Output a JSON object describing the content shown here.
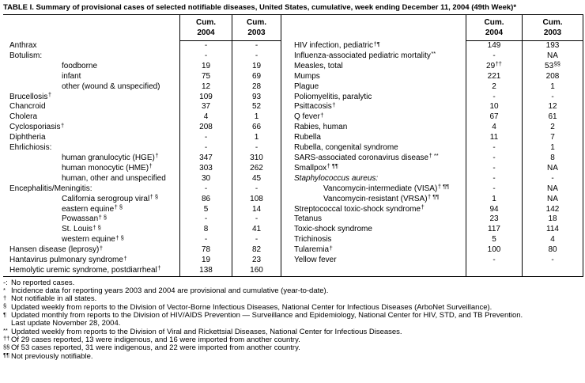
{
  "title": "TABLE I. Summary of provisional cases of selected notifiable diseases, United States, cumulative, week ending December 11, 2004 (49th Week)*",
  "columns": {
    "cum": "Cum.",
    "y2004": "2004",
    "y2003": "2003"
  },
  "left_rows": [
    {
      "label": "Anthrax",
      "sup": "",
      "indent": 0,
      "italic": false,
      "v2004": "-",
      "s2004": "",
      "v2003": "-",
      "s2003": ""
    },
    {
      "label": "Botulism:",
      "sup": "",
      "indent": 0,
      "italic": false,
      "v2004": "-",
      "s2004": "",
      "v2003": "-",
      "s2003": ""
    },
    {
      "label": "foodborne",
      "sup": "",
      "indent": 1,
      "italic": false,
      "v2004": "19",
      "s2004": "",
      "v2003": "19",
      "s2003": ""
    },
    {
      "label": "infant",
      "sup": "",
      "indent": 1,
      "italic": false,
      "v2004": "75",
      "s2004": "",
      "v2003": "69",
      "s2003": ""
    },
    {
      "label": "other (wound & unspecified)",
      "sup": "",
      "indent": 1,
      "italic": false,
      "v2004": "12",
      "s2004": "",
      "v2003": "28",
      "s2003": ""
    },
    {
      "label": "Brucellosis",
      "sup": "†",
      "indent": 0,
      "italic": false,
      "v2004": "109",
      "s2004": "",
      "v2003": "93",
      "s2003": ""
    },
    {
      "label": "Chancroid",
      "sup": "",
      "indent": 0,
      "italic": false,
      "v2004": "37",
      "s2004": "",
      "v2003": "52",
      "s2003": ""
    },
    {
      "label": "Cholera",
      "sup": "",
      "indent": 0,
      "italic": false,
      "v2004": "4",
      "s2004": "",
      "v2003": "1",
      "s2003": ""
    },
    {
      "label": "Cyclosporiasis",
      "sup": "†",
      "indent": 0,
      "italic": false,
      "v2004": "208",
      "s2004": "",
      "v2003": "66",
      "s2003": ""
    },
    {
      "label": "Diphtheria",
      "sup": "",
      "indent": 0,
      "italic": false,
      "v2004": "-",
      "s2004": "",
      "v2003": "1",
      "s2003": ""
    },
    {
      "label": "Ehrlichiosis:",
      "sup": "",
      "indent": 0,
      "italic": false,
      "v2004": "-",
      "s2004": "",
      "v2003": "-",
      "s2003": ""
    },
    {
      "label": "human granulocytic (HGE)",
      "sup": "†",
      "indent": 1,
      "italic": false,
      "v2004": "347",
      "s2004": "",
      "v2003": "310",
      "s2003": ""
    },
    {
      "label": "human monocytic (HME)",
      "sup": "†",
      "indent": 1,
      "italic": false,
      "v2004": "303",
      "s2004": "",
      "v2003": "262",
      "s2003": ""
    },
    {
      "label": "human, other and unspecified",
      "sup": "",
      "indent": 1,
      "italic": false,
      "v2004": "30",
      "s2004": "",
      "v2003": "45",
      "s2003": ""
    },
    {
      "label": "Encephalitis/Meningitis:",
      "sup": "",
      "indent": 0,
      "italic": false,
      "v2004": "-",
      "s2004": "",
      "v2003": "-",
      "s2003": ""
    },
    {
      "label": "California serogroup viral",
      "sup": "† §",
      "indent": 1,
      "italic": false,
      "v2004": "86",
      "s2004": "",
      "v2003": "108",
      "s2003": ""
    },
    {
      "label": "eastern equine",
      "sup": "† §",
      "indent": 1,
      "italic": false,
      "v2004": "5",
      "s2004": "",
      "v2003": "14",
      "s2003": ""
    },
    {
      "label": "Powassan",
      "sup": "† §",
      "indent": 1,
      "italic": false,
      "v2004": "-",
      "s2004": "",
      "v2003": "-",
      "s2003": ""
    },
    {
      "label": "St. Louis",
      "sup": "† §",
      "indent": 1,
      "italic": false,
      "v2004": "8",
      "s2004": "",
      "v2003": "41",
      "s2003": ""
    },
    {
      "label": "western equine",
      "sup": "† §",
      "indent": 1,
      "italic": false,
      "v2004": "-",
      "s2004": "",
      "v2003": "-",
      "s2003": ""
    },
    {
      "label": "Hansen disease (leprosy)",
      "sup": "†",
      "indent": 0,
      "italic": false,
      "v2004": "78",
      "s2004": "",
      "v2003": "82",
      "s2003": ""
    },
    {
      "label": "Hantavirus pulmonary syndrome",
      "sup": "†",
      "indent": 0,
      "italic": false,
      "v2004": "19",
      "s2004": "",
      "v2003": "23",
      "s2003": ""
    },
    {
      "label": "Hemolytic uremic syndrome, postdiarrheal",
      "sup": "†",
      "indent": 0,
      "italic": false,
      "v2004": "138",
      "s2004": "",
      "v2003": "160",
      "s2003": ""
    }
  ],
  "right_rows": [
    {
      "label": "HIV infection, pediatric",
      "sup": "†¶",
      "indent": 0,
      "italic": false,
      "v2004": "149",
      "s2004": "",
      "v2003": "193",
      "s2003": ""
    },
    {
      "label": "Influenza-associated pediatric mortality",
      "sup": "**",
      "indent": 0,
      "italic": false,
      "v2004": "-",
      "s2004": "",
      "v2003": "NA",
      "s2003": ""
    },
    {
      "label": "Measles, total",
      "sup": "",
      "indent": 0,
      "italic": false,
      "v2004": "29",
      "s2004": "††",
      "v2003": "53",
      "s2003": "§§"
    },
    {
      "label": "Mumps",
      "sup": "",
      "indent": 0,
      "italic": false,
      "v2004": "221",
      "s2004": "",
      "v2003": "208",
      "s2003": ""
    },
    {
      "label": "Plague",
      "sup": "",
      "indent": 0,
      "italic": false,
      "v2004": "2",
      "s2004": "",
      "v2003": "1",
      "s2003": ""
    },
    {
      "label": "Poliomyelitis, paralytic",
      "sup": "",
      "indent": 0,
      "italic": false,
      "v2004": "-",
      "s2004": "",
      "v2003": "-",
      "s2003": ""
    },
    {
      "label": "Psittacosis",
      "sup": "†",
      "indent": 0,
      "italic": false,
      "v2004": "10",
      "s2004": "",
      "v2003": "12",
      "s2003": ""
    },
    {
      "label": "Q fever",
      "sup": "†",
      "indent": 0,
      "italic": false,
      "v2004": "67",
      "s2004": "",
      "v2003": "61",
      "s2003": ""
    },
    {
      "label": "Rabies, human",
      "sup": "",
      "indent": 0,
      "italic": false,
      "v2004": "4",
      "s2004": "",
      "v2003": "2",
      "s2003": ""
    },
    {
      "label": "Rubella",
      "sup": "",
      "indent": 0,
      "italic": false,
      "v2004": "11",
      "s2004": "",
      "v2003": "7",
      "s2003": ""
    },
    {
      "label": "Rubella, congenital syndrome",
      "sup": "",
      "indent": 0,
      "italic": false,
      "v2004": "-",
      "s2004": "",
      "v2003": "1",
      "s2003": ""
    },
    {
      "label": "SARS-associated coronavirus disease",
      "sup": "† **",
      "indent": 0,
      "italic": false,
      "v2004": "-",
      "s2004": "",
      "v2003": "8",
      "s2003": ""
    },
    {
      "label": "Smallpox",
      "sup": "† ¶¶",
      "indent": 0,
      "italic": false,
      "v2004": "-",
      "s2004": "",
      "v2003": "NA",
      "s2003": ""
    },
    {
      "label": "Staphylococcus aureus:",
      "sup": "",
      "indent": 0,
      "italic": true,
      "v2004": "-",
      "s2004": "",
      "v2003": "-",
      "s2003": ""
    },
    {
      "label": "Vancomycin-intermediate (VISA)",
      "sup": "† ¶¶",
      "indent": 1,
      "italic": false,
      "v2004": "-",
      "s2004": "",
      "v2003": "NA",
      "s2003": ""
    },
    {
      "label": "Vancomycin-resistant (VRSA)",
      "sup": "† ¶¶",
      "indent": 1,
      "italic": false,
      "v2004": "1",
      "s2004": "",
      "v2003": "NA",
      "s2003": ""
    },
    {
      "label": "Streptococcal toxic-shock syndrome",
      "sup": "†",
      "indent": 0,
      "italic": false,
      "v2004": "94",
      "s2004": "",
      "v2003": "142",
      "s2003": ""
    },
    {
      "label": "Tetanus",
      "sup": "",
      "indent": 0,
      "italic": false,
      "v2004": "23",
      "s2004": "",
      "v2003": "18",
      "s2003": ""
    },
    {
      "label": "Toxic-shock syndrome",
      "sup": "",
      "indent": 0,
      "italic": false,
      "v2004": "117",
      "s2004": "",
      "v2003": "114",
      "s2003": ""
    },
    {
      "label": "Trichinosis",
      "sup": "",
      "indent": 0,
      "italic": false,
      "v2004": "5",
      "s2004": "",
      "v2003": "4",
      "s2003": ""
    },
    {
      "label": "Tularemia",
      "sup": "†",
      "indent": 0,
      "italic": false,
      "v2004": "100",
      "s2004": "",
      "v2003": "80",
      "s2003": ""
    },
    {
      "label": "Yellow fever",
      "sup": "",
      "indent": 0,
      "italic": false,
      "v2004": "-",
      "s2004": "",
      "v2003": "-",
      "s2003": ""
    }
  ],
  "footnotes": [
    {
      "marker": "-:",
      "text": "No reported cases.",
      "cont": ""
    },
    {
      "marker": "*",
      "text": "Incidence data for reporting years 2003 and 2004 are provisional and cumulative (year-to-date).",
      "cont": ""
    },
    {
      "marker": "†",
      "text": "Not notifiable in all states.",
      "cont": ""
    },
    {
      "marker": "§",
      "text": "Updated weekly from reports to the Division of Vector-Borne Infectious Diseases, National Center for Infectious Diseases (ArboNet Surveillance).",
      "cont": ""
    },
    {
      "marker": "¶",
      "text": "Updated monthly from reports to the Division of HIV/AIDS Prevention — Surveillance and Epidemiology, National Center for HIV, STD, and TB Prevention.",
      "cont": "Last update November 28, 2004."
    },
    {
      "marker": "**",
      "text": "Updated weekly from reports to the Division of Viral and Rickettsial Diseases, National Center for Infectious Diseases.",
      "cont": ""
    },
    {
      "marker": "††",
      "text": "Of 29 cases reported, 13 were indigenous, and 16 were imported from another country.",
      "cont": ""
    },
    {
      "marker": "§§",
      "text": "Of 53 cases reported, 31 were indigenous, and 22 were imported from another country.",
      "cont": ""
    },
    {
      "marker": "¶¶",
      "text": "Not previously notifiable.",
      "cont": ""
    }
  ],
  "colors": {
    "text": "#000000",
    "background": "#ffffff",
    "border": "#000000"
  }
}
